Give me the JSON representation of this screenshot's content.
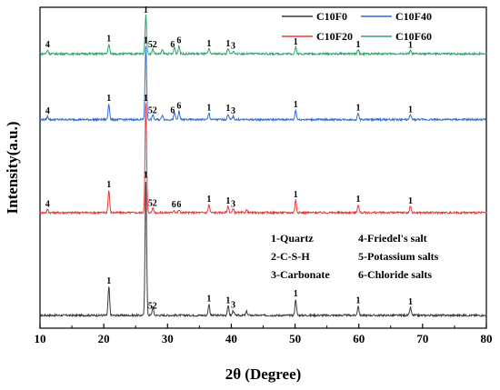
{
  "chart_data": {
    "type": "line",
    "xlabel": "2θ (Degree)",
    "ylabel": "Intensity(a.u.)",
    "xlim": [
      10,
      80
    ],
    "xticks": [
      10,
      20,
      30,
      40,
      50,
      60,
      70,
      80
    ],
    "grid": false,
    "legend": "top-right",
    "series": [
      {
        "name": "C10F0",
        "color": "#3a3a3a",
        "baseline": 0.04,
        "peaks": [
          {
            "x": 20.8,
            "h": 0.09
          },
          {
            "x": 26.6,
            "h": 0.42
          },
          {
            "x": 27.7,
            "h": 0.025
          },
          {
            "x": 36.5,
            "h": 0.035
          },
          {
            "x": 39.5,
            "h": 0.03
          },
          {
            "x": 40.3,
            "h": 0.015
          },
          {
            "x": 42.4,
            "h": 0.012
          },
          {
            "x": 50.1,
            "h": 0.05
          },
          {
            "x": 59.9,
            "h": 0.03
          },
          {
            "x": 68.1,
            "h": 0.025
          }
        ],
        "labels": [
          {
            "x": 20.8,
            "text": "1"
          },
          {
            "x": 26.6,
            "text": "1"
          },
          {
            "x": 27.3,
            "text": "5"
          },
          {
            "x": 28.0,
            "text": "2"
          },
          {
            "x": 36.5,
            "text": "1"
          },
          {
            "x": 39.5,
            "text": "1"
          },
          {
            "x": 40.3,
            "text": "3"
          },
          {
            "x": 50.1,
            "text": "1"
          },
          {
            "x": 59.9,
            "text": "1"
          },
          {
            "x": 68.1,
            "text": "1"
          }
        ]
      },
      {
        "name": "C10F20",
        "color": "#e8393a",
        "baseline": 0.36,
        "peaks": [
          {
            "x": 11.2,
            "h": 0.01
          },
          {
            "x": 20.8,
            "h": 0.07
          },
          {
            "x": 26.6,
            "h": 0.34
          },
          {
            "x": 27.7,
            "h": 0.015
          },
          {
            "x": 31.0,
            "h": 0.008
          },
          {
            "x": 31.8,
            "h": 0.008
          },
          {
            "x": 36.5,
            "h": 0.025
          },
          {
            "x": 39.5,
            "h": 0.02
          },
          {
            "x": 40.3,
            "h": 0.01
          },
          {
            "x": 42.4,
            "h": 0.008
          },
          {
            "x": 50.1,
            "h": 0.04
          },
          {
            "x": 59.9,
            "h": 0.025
          },
          {
            "x": 68.1,
            "h": 0.02
          }
        ],
        "labels": [
          {
            "x": 11.2,
            "text": "4"
          },
          {
            "x": 20.8,
            "text": "1"
          },
          {
            "x": 26.6,
            "text": "1"
          },
          {
            "x": 27.3,
            "text": "5"
          },
          {
            "x": 28.0,
            "text": "2"
          },
          {
            "x": 31.0,
            "text": "6"
          },
          {
            "x": 31.8,
            "text": "6"
          },
          {
            "x": 36.5,
            "text": "1"
          },
          {
            "x": 39.5,
            "text": "1"
          },
          {
            "x": 40.3,
            "text": "3"
          },
          {
            "x": 50.1,
            "text": "1"
          },
          {
            "x": 59.9,
            "text": "1"
          },
          {
            "x": 68.1,
            "text": "1"
          }
        ]
      },
      {
        "name": "C10F40",
        "color": "#2e6fd6",
        "baseline": 0.65,
        "peaks": [
          {
            "x": 11.2,
            "h": 0.01
          },
          {
            "x": 20.8,
            "h": 0.05
          },
          {
            "x": 26.6,
            "h": 0.23
          },
          {
            "x": 27.7,
            "h": 0.015
          },
          {
            "x": 29.2,
            "h": 0.015
          },
          {
            "x": 31.1,
            "h": 0.02
          },
          {
            "x": 31.8,
            "h": 0.025
          },
          {
            "x": 36.5,
            "h": 0.02
          },
          {
            "x": 39.5,
            "h": 0.018
          },
          {
            "x": 40.3,
            "h": 0.01
          },
          {
            "x": 50.1,
            "h": 0.03
          },
          {
            "x": 59.9,
            "h": 0.02
          },
          {
            "x": 68.1,
            "h": 0.015
          }
        ],
        "labels": [
          {
            "x": 11.2,
            "text": "4"
          },
          {
            "x": 20.8,
            "text": "1"
          },
          {
            "x": 26.6,
            "text": "1"
          },
          {
            "x": 27.3,
            "text": "5"
          },
          {
            "x": 28.0,
            "text": "2"
          },
          {
            "x": 30.8,
            "text": "6"
          },
          {
            "x": 31.8,
            "text": "6"
          },
          {
            "x": 36.5,
            "text": "1"
          },
          {
            "x": 39.5,
            "text": "1"
          },
          {
            "x": 40.3,
            "text": "3"
          },
          {
            "x": 50.1,
            "text": "1"
          },
          {
            "x": 59.9,
            "text": "1"
          },
          {
            "x": 68.1,
            "text": "1"
          }
        ]
      },
      {
        "name": "C10F60",
        "color": "#2ea66b",
        "baseline": 0.855,
        "peaks": [
          {
            "x": 11.2,
            "h": 0.012
          },
          {
            "x": 20.8,
            "h": 0.03
          },
          {
            "x": 26.6,
            "h": 0.12
          },
          {
            "x": 27.7,
            "h": 0.015
          },
          {
            "x": 29.2,
            "h": 0.012
          },
          {
            "x": 31.1,
            "h": 0.02
          },
          {
            "x": 31.8,
            "h": 0.025
          },
          {
            "x": 36.5,
            "h": 0.015
          },
          {
            "x": 39.5,
            "h": 0.015
          },
          {
            "x": 40.3,
            "h": 0.008
          },
          {
            "x": 50.1,
            "h": 0.02
          },
          {
            "x": 59.9,
            "h": 0.012
          },
          {
            "x": 68.1,
            "h": 0.01
          }
        ],
        "labels": [
          {
            "x": 11.2,
            "text": "4"
          },
          {
            "x": 20.8,
            "text": "1"
          },
          {
            "x": 26.6,
            "text": "1"
          },
          {
            "x": 27.3,
            "text": "5"
          },
          {
            "x": 28.0,
            "text": "2"
          },
          {
            "x": 30.8,
            "text": "6"
          },
          {
            "x": 31.8,
            "text": "6"
          },
          {
            "x": 36.5,
            "text": "1"
          },
          {
            "x": 39.5,
            "text": "1"
          },
          {
            "x": 40.3,
            "text": "3"
          },
          {
            "x": 50.1,
            "text": "1"
          },
          {
            "x": 59.9,
            "text": "1"
          },
          {
            "x": 68.1,
            "text": "1"
          }
        ]
      }
    ],
    "annotations": {
      "phases": [
        "1-Quartz",
        "4-Friedel's salt",
        "2-C-S-H",
        "5-Potassium salts",
        "3-Carbonate",
        "6-Chloride salts"
      ]
    }
  }
}
